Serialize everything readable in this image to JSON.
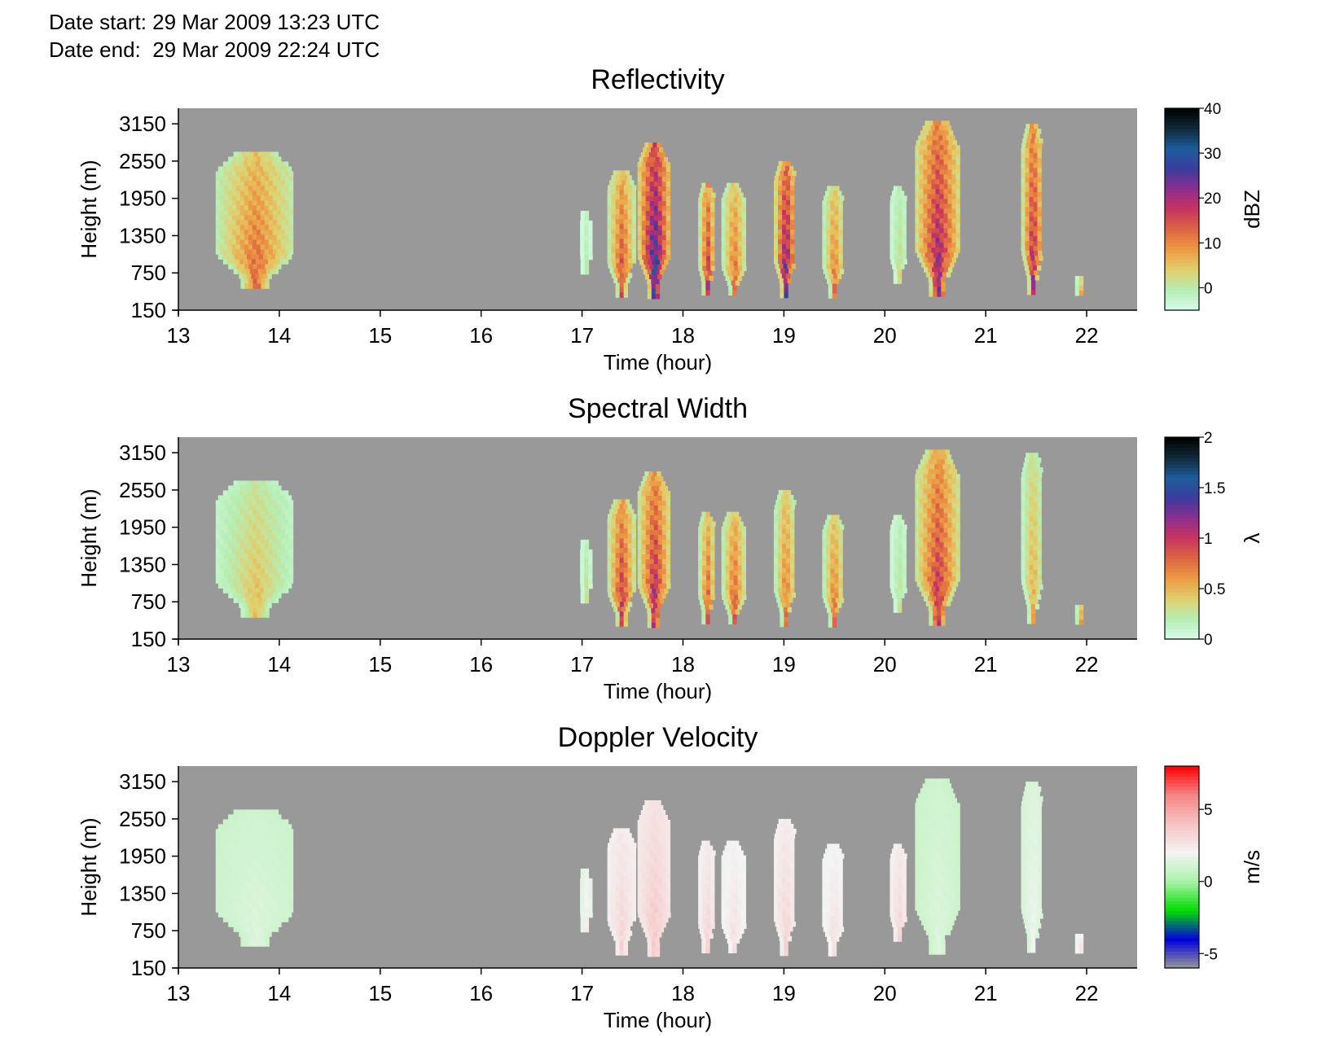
{
  "header": {
    "date_start": "Date start: 29 Mar 2009 13:23 UTC",
    "date_end": "Date end:  29 Mar 2009 22:24 UTC"
  },
  "colors": {
    "background_no_data": "#999999",
    "reflectivity_scale": [
      "#d8fbea",
      "#b6eeb4",
      "#e1cf6d",
      "#ed9c43",
      "#dd6642",
      "#c8345f",
      "#8e2e8e",
      "#3b3c9c",
      "#1c5d9d",
      "#102a3a",
      "#000000"
    ],
    "spectral_width_scale": [
      "#d8fbea",
      "#b6eeb4",
      "#e1cf6d",
      "#ed9c43",
      "#dd6642",
      "#c8345f",
      "#8e2e8e",
      "#3b3c9c",
      "#1c5d9d",
      "#102a3a",
      "#000000"
    ],
    "velocity_scale": [
      "#999999",
      "#0000dd",
      "#00dd00",
      "#a8f3a8",
      "#f4f4f4",
      "#f7c4c4",
      "#f48686",
      "#ff0000"
    ]
  },
  "chart_data": [
    {
      "type": "heatmap",
      "title": "Reflectivity",
      "xlabel": "Time (hour)",
      "ylabel": "Height (m)",
      "xlim": [
        13,
        22.5
      ],
      "ylim": [
        150,
        3400
      ],
      "x_ticks": [
        13,
        14,
        15,
        16,
        17,
        18,
        19,
        20,
        21,
        22
      ],
      "y_ticks": [
        150,
        750,
        1350,
        1950,
        2550,
        3150
      ],
      "colorbar": {
        "label": "dBZ",
        "range": [
          -5,
          40
        ],
        "ticks": [
          0,
          10,
          20,
          30,
          40
        ]
      },
      "grid": false,
      "echoes": [
        {
          "t_start": 13.37,
          "t_end": 14.13,
          "base_m": 500,
          "top_m": 2700,
          "peak_value": 14
        },
        {
          "t_start": 16.98,
          "t_end": 17.07,
          "base_m": 800,
          "top_m": 1750,
          "peak_value": 0
        },
        {
          "t_start": 17.25,
          "t_end": 17.5,
          "base_m": 400,
          "top_m": 2400,
          "peak_value": 17
        },
        {
          "t_start": 17.55,
          "t_end": 17.85,
          "base_m": 400,
          "top_m": 2850,
          "peak_value": 32
        },
        {
          "t_start": 18.15,
          "t_end": 18.3,
          "base_m": 400,
          "top_m": 2200,
          "peak_value": 20
        },
        {
          "t_start": 18.38,
          "t_end": 18.6,
          "base_m": 400,
          "top_m": 2200,
          "peak_value": 14
        },
        {
          "t_start": 18.9,
          "t_end": 19.1,
          "base_m": 400,
          "top_m": 2550,
          "peak_value": 27
        },
        {
          "t_start": 19.38,
          "t_end": 19.58,
          "base_m": 400,
          "top_m": 2150,
          "peak_value": 13
        },
        {
          "t_start": 20.05,
          "t_end": 20.2,
          "base_m": 600,
          "top_m": 2150,
          "peak_value": 3
        },
        {
          "t_start": 20.3,
          "t_end": 20.72,
          "base_m": 400,
          "top_m": 3200,
          "peak_value": 24
        },
        {
          "t_start": 21.35,
          "t_end": 21.55,
          "base_m": 400,
          "top_m": 3150,
          "peak_value": 22
        },
        {
          "t_start": 21.9,
          "t_end": 21.95,
          "base_m": 400,
          "top_m": 700,
          "peak_value": 8
        }
      ]
    },
    {
      "type": "heatmap",
      "title": "Spectral Width",
      "xlabel": "Time (hour)",
      "ylabel": "Height (m)",
      "xlim": [
        13,
        22.5
      ],
      "ylim": [
        150,
        3400
      ],
      "x_ticks": [
        13,
        14,
        15,
        16,
        17,
        18,
        19,
        20,
        21,
        22
      ],
      "y_ticks": [
        150,
        750,
        1350,
        1950,
        2550,
        3150
      ],
      "colorbar": {
        "label": "λ",
        "range": [
          0,
          2
        ],
        "ticks": [
          0,
          0.5,
          1,
          1.5,
          2
        ]
      },
      "grid": false,
      "echoes": [
        {
          "t_start": 13.37,
          "t_end": 14.13,
          "base_m": 500,
          "top_m": 2700,
          "peak_value": 0.5
        },
        {
          "t_start": 16.98,
          "t_end": 17.07,
          "base_m": 800,
          "top_m": 1750,
          "peak_value": 0.3
        },
        {
          "t_start": 17.25,
          "t_end": 17.5,
          "base_m": 400,
          "top_m": 2400,
          "peak_value": 1.1
        },
        {
          "t_start": 17.55,
          "t_end": 17.85,
          "base_m": 400,
          "top_m": 2850,
          "peak_value": 1.2
        },
        {
          "t_start": 18.15,
          "t_end": 18.3,
          "base_m": 400,
          "top_m": 2200,
          "peak_value": 0.9
        },
        {
          "t_start": 18.38,
          "t_end": 18.6,
          "base_m": 400,
          "top_m": 2200,
          "peak_value": 0.9
        },
        {
          "t_start": 18.9,
          "t_end": 19.1,
          "base_m": 400,
          "top_m": 2550,
          "peak_value": 0.8
        },
        {
          "t_start": 19.38,
          "t_end": 19.58,
          "base_m": 400,
          "top_m": 2150,
          "peak_value": 0.8
        },
        {
          "t_start": 20.05,
          "t_end": 20.2,
          "base_m": 600,
          "top_m": 2150,
          "peak_value": 0.3
        },
        {
          "t_start": 20.3,
          "t_end": 20.72,
          "base_m": 400,
          "top_m": 3200,
          "peak_value": 1.1
        },
        {
          "t_start": 21.35,
          "t_end": 21.55,
          "base_m": 400,
          "top_m": 3150,
          "peak_value": 0.6
        },
        {
          "t_start": 21.9,
          "t_end": 21.95,
          "base_m": 400,
          "top_m": 700,
          "peak_value": 0.7
        }
      ]
    },
    {
      "type": "heatmap",
      "title": "Doppler Velocity",
      "xlabel": "Time (hour)",
      "ylabel": "Height (m)",
      "xlim": [
        13,
        22.5
      ],
      "ylim": [
        150,
        3400
      ],
      "x_ticks": [
        13,
        14,
        15,
        16,
        17,
        18,
        19,
        20,
        21,
        22
      ],
      "y_ticks": [
        150,
        750,
        1350,
        1950,
        2550,
        3150
      ],
      "colorbar": {
        "label": "m/s",
        "range": [
          -6,
          8
        ],
        "ticks": [
          -5,
          0,
          5
        ]
      },
      "grid": false,
      "echoes": [
        {
          "t_start": 13.37,
          "t_end": 14.13,
          "base_m": 500,
          "top_m": 2700,
          "peak_value": 1.5
        },
        {
          "t_start": 16.98,
          "t_end": 17.07,
          "base_m": 800,
          "top_m": 1750,
          "peak_value": 2.5
        },
        {
          "t_start": 17.25,
          "t_end": 17.5,
          "base_m": 400,
          "top_m": 2400,
          "peak_value": 3.5
        },
        {
          "t_start": 17.55,
          "t_end": 17.85,
          "base_m": 400,
          "top_m": 2850,
          "peak_value": 4
        },
        {
          "t_start": 18.15,
          "t_end": 18.3,
          "base_m": 400,
          "top_m": 2200,
          "peak_value": 3.5
        },
        {
          "t_start": 18.38,
          "t_end": 18.6,
          "base_m": 400,
          "top_m": 2200,
          "peak_value": 3
        },
        {
          "t_start": 18.9,
          "t_end": 19.1,
          "base_m": 400,
          "top_m": 2550,
          "peak_value": 3.5
        },
        {
          "t_start": 19.38,
          "t_end": 19.58,
          "base_m": 400,
          "top_m": 2150,
          "peak_value": 3
        },
        {
          "t_start": 20.05,
          "t_end": 20.2,
          "base_m": 600,
          "top_m": 2150,
          "peak_value": 3.5
        },
        {
          "t_start": 20.3,
          "t_end": 20.72,
          "base_m": 400,
          "top_m": 3200,
          "peak_value": 1.5
        },
        {
          "t_start": 21.35,
          "t_end": 21.55,
          "base_m": 400,
          "top_m": 3150,
          "peak_value": 2
        },
        {
          "t_start": 21.9,
          "t_end": 21.95,
          "base_m": 400,
          "top_m": 700,
          "peak_value": 3
        }
      ]
    }
  ]
}
